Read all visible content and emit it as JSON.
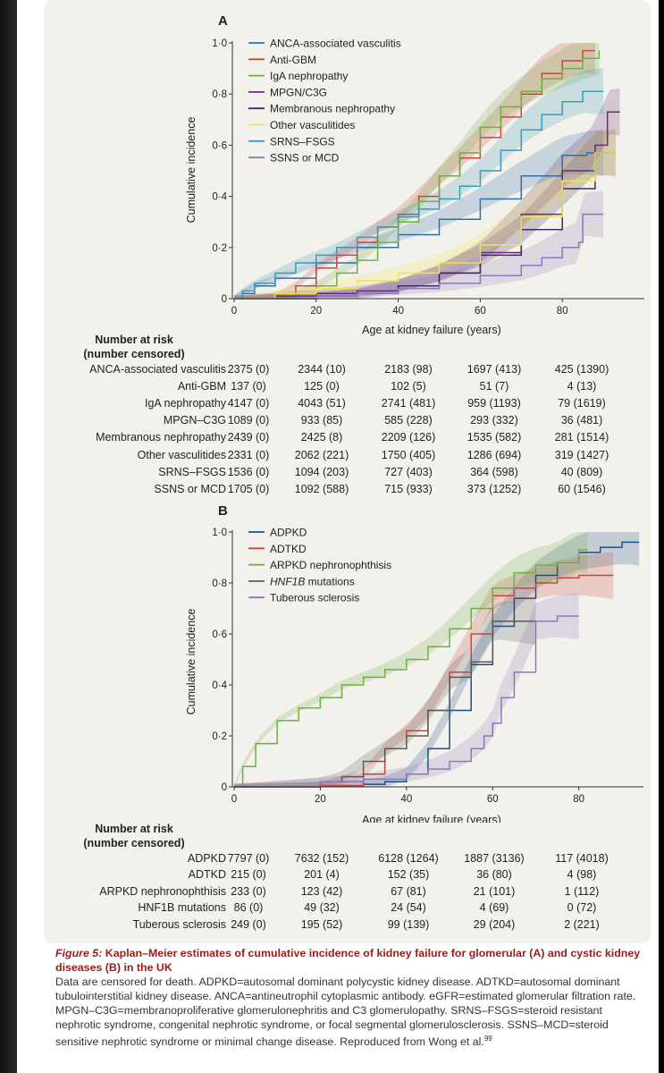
{
  "panels": [
    {
      "label": "A",
      "ylabel": "Cumulative incidence",
      "xlabel": "Age at kidney failure (years)",
      "yticks": [
        "0",
        "0·2",
        "0·4",
        "0·6",
        "0·8",
        "1·0"
      ],
      "xticks": [
        "0",
        "20",
        "40",
        "60",
        "80"
      ],
      "legend": [
        "ANCA-associated vasculitis",
        "Anti-GBM",
        "IgA nephropathy",
        "MPGN/C3G",
        "Membranous nephropathy",
        "Other vasculitides",
        "SRNS–FSGS",
        "SSNS or MCD"
      ],
      "risk_header": [
        "Number at risk",
        "(number censored)"
      ],
      "risk_rows": [
        {
          "label": "ANCA-associated vasculitis",
          "cells": [
            "2375 (0)",
            "2344 (10)",
            "2183 (98)",
            "1697 (413)",
            "425 (1390)"
          ]
        },
        {
          "label": "Anti-GBM",
          "cells": [
            "137 (0)",
            "125 (0)",
            "102 (5)",
            "51 (7)",
            "4 (13)"
          ]
        },
        {
          "label": "IgA nephropathy",
          "cells": [
            "4147 (0)",
            "4043 (51)",
            "2741 (481)",
            "959 (1193)",
            "79 (1619)"
          ]
        },
        {
          "label": "MPGN–C3G",
          "cells": [
            "1089 (0)",
            "933 (85)",
            "585 (228)",
            "293 (332)",
            "36 (481)"
          ]
        },
        {
          "label": "Membranous nephropathy",
          "cells": [
            "2439 (0)",
            "2425 (8)",
            "2209 (126)",
            "1535 (582)",
            "281 (1514)"
          ]
        },
        {
          "label": "Other vasculitides",
          "cells": [
            "2331 (0)",
            "2062 (221)",
            "1750 (405)",
            "1286 (694)",
            "319 (1427)"
          ]
        },
        {
          "label": "SRNS–FSGS",
          "cells": [
            "1536 (0)",
            "1094 (203)",
            "727 (403)",
            "364 (598)",
            "40 (809)"
          ]
        },
        {
          "label": "SSNS or MCD",
          "cells": [
            "1705 (0)",
            "1092 (588)",
            "715 (933)",
            "373 (1252)",
            "60 (1546)"
          ]
        }
      ]
    },
    {
      "label": "B",
      "ylabel": "Cumulative incidence",
      "xlabel": "Age at kidney failure (years)",
      "yticks": [
        "0",
        "0·2",
        "0·4",
        "0·6",
        "0·8",
        "1·0"
      ],
      "xticks": [
        "0",
        "20",
        "40",
        "60",
        "80"
      ],
      "legend": [
        "ADPKD",
        "ADTKD",
        "ARPKD nephronophthisis",
        "HNF1B mutations",
        "Tuberous sclerosis"
      ],
      "risk_header": [
        "Number at risk",
        "(number censored)"
      ],
      "risk_rows": [
        {
          "label": "ADPKD",
          "cells": [
            "7797 (0)",
            "7632 (152)",
            "6128 (1264)",
            "1887 (3136)",
            "117 (4018)"
          ]
        },
        {
          "label": "ADTKD",
          "cells": [
            "215 (0)",
            "201 (4)",
            "152 (35)",
            "36 (80)",
            "4 (98)"
          ]
        },
        {
          "label": "ARPKD nephronophthisis",
          "cells": [
            "233 (0)",
            "123 (42)",
            "67 (81)",
            "21 (101)",
            "1 (112)"
          ]
        },
        {
          "label": "HNF1B mutations",
          "cells": [
            "86 (0)",
            "49 (32)",
            "24 (54)",
            "4 (69)",
            "0 (72)"
          ]
        },
        {
          "label": "Tuberous sclerosis",
          "cells": [
            "249 (0)",
            "195 (52)",
            "99 (139)",
            "29 (204)",
            "2 (221)"
          ]
        }
      ]
    }
  ],
  "chart_data": [
    {
      "type": "line",
      "title": "A",
      "xlabel": "Age at kidney failure (years)",
      "ylabel": "Cumulative incidence",
      "xlim": [
        0,
        100
      ],
      "ylim": [
        0,
        1
      ],
      "series": [
        {
          "name": "ANCA-associated vasculitis",
          "color": "#2f6fa8",
          "x": [
            0,
            2,
            5,
            10,
            20,
            30,
            40,
            50,
            60,
            70,
            80,
            86,
            90
          ],
          "y": [
            0,
            0.02,
            0.05,
            0.08,
            0.14,
            0.2,
            0.25,
            0.31,
            0.39,
            0.48,
            0.56,
            0.57,
            0.57
          ]
        },
        {
          "name": "Anti-GBM",
          "color": "#c8473a",
          "x": [
            0,
            10,
            15,
            20,
            25,
            30,
            35,
            40,
            45,
            50,
            55,
            60,
            65,
            70,
            75,
            80,
            85,
            88
          ],
          "y": [
            0,
            0.01,
            0.05,
            0.12,
            0.17,
            0.22,
            0.28,
            0.33,
            0.4,
            0.48,
            0.55,
            0.63,
            0.71,
            0.8,
            0.88,
            0.93,
            0.97,
            0.97
          ]
        },
        {
          "name": "IgA nephropathy",
          "color": "#6fae45",
          "x": [
            0,
            10,
            15,
            20,
            25,
            30,
            35,
            40,
            45,
            50,
            55,
            60,
            65,
            70,
            75,
            80,
            85,
            89
          ],
          "y": [
            0,
            0.003,
            0.02,
            0.05,
            0.1,
            0.15,
            0.22,
            0.3,
            0.38,
            0.48,
            0.57,
            0.67,
            0.75,
            0.81,
            0.86,
            0.9,
            0.94,
            0.97
          ]
        },
        {
          "name": "MPGN/C3G",
          "color": "#6a2a78",
          "x": [
            0,
            10,
            20,
            30,
            40,
            50,
            60,
            70,
            80,
            88,
            91,
            94
          ],
          "y": [
            0,
            0.01,
            0.02,
            0.03,
            0.05,
            0.1,
            0.18,
            0.33,
            0.5,
            0.6,
            0.73,
            0.73
          ]
        },
        {
          "name": "Membranous nephropathy",
          "color": "#3e2a63",
          "x": [
            0,
            20,
            30,
            40,
            50,
            60,
            70,
            80,
            88,
            93
          ],
          "y": [
            0,
            0.01,
            0.02,
            0.05,
            0.1,
            0.17,
            0.27,
            0.43,
            0.57,
            0.57
          ]
        },
        {
          "name": "Other vasculitides",
          "color": "#f2e34a",
          "x": [
            0,
            10,
            20,
            30,
            40,
            50,
            60,
            70,
            80,
            88,
            93
          ],
          "y": [
            0,
            0.02,
            0.04,
            0.07,
            0.1,
            0.14,
            0.21,
            0.32,
            0.46,
            0.57,
            0.57
          ]
        },
        {
          "name": "SRNS–FSGS",
          "color": "#3d9ab6",
          "x": [
            0,
            2,
            5,
            10,
            15,
            20,
            25,
            30,
            35,
            40,
            45,
            50,
            55,
            60,
            65,
            70,
            75,
            80,
            85,
            90
          ],
          "y": [
            0,
            0.03,
            0.06,
            0.1,
            0.14,
            0.17,
            0.2,
            0.24,
            0.28,
            0.32,
            0.35,
            0.39,
            0.44,
            0.5,
            0.58,
            0.66,
            0.72,
            0.77,
            0.81,
            0.81
          ]
        },
        {
          "name": "SSNS or MCD",
          "color": "#8e77b8",
          "x": [
            0,
            20,
            30,
            40,
            50,
            60,
            70,
            75,
            80,
            84,
            85,
            90
          ],
          "y": [
            0,
            0.01,
            0.02,
            0.04,
            0.06,
            0.09,
            0.13,
            0.16,
            0.2,
            0.22,
            0.33,
            0.33
          ]
        }
      ]
    },
    {
      "type": "line",
      "title": "B",
      "xlabel": "Age at kidney failure (years)",
      "ylabel": "Cumulative incidence",
      "xlim": [
        0,
        95
      ],
      "ylim": [
        0,
        1
      ],
      "series": [
        {
          "name": "ADPKD",
          "color": "#1f4f8a",
          "x": [
            0,
            20,
            30,
            35,
            40,
            45,
            50,
            55,
            60,
            65,
            70,
            75,
            80,
            85,
            90,
            94
          ],
          "y": [
            0,
            0.005,
            0.01,
            0.02,
            0.05,
            0.15,
            0.3,
            0.48,
            0.63,
            0.74,
            0.83,
            0.88,
            0.92,
            0.94,
            0.96,
            0.96
          ]
        },
        {
          "name": "ADTKD",
          "color": "#c8473a",
          "x": [
            0,
            20,
            30,
            35,
            40,
            45,
            50,
            55,
            60,
            65,
            70,
            75,
            80,
            83,
            88
          ],
          "y": [
            0,
            0.005,
            0.05,
            0.15,
            0.22,
            0.3,
            0.45,
            0.6,
            0.75,
            0.78,
            0.8,
            0.82,
            0.83,
            0.83,
            0.83
          ]
        },
        {
          "name": "ARPKD nephronophthisis",
          "color": "#6fae45",
          "x": [
            0,
            2,
            5,
            10,
            15,
            20,
            25,
            30,
            35,
            40,
            45,
            50,
            55,
            60,
            65,
            70,
            75,
            80,
            82
          ],
          "y": [
            0,
            0.08,
            0.17,
            0.26,
            0.31,
            0.35,
            0.4,
            0.43,
            0.46,
            0.5,
            0.55,
            0.62,
            0.7,
            0.78,
            0.84,
            0.87,
            0.88,
            0.93,
            0.93
          ]
        },
        {
          "name": "HNF1B mutations",
          "color": "#5a5a5a",
          "x": [
            0,
            20,
            25,
            30,
            35,
            40,
            45,
            50,
            55,
            60,
            65,
            70
          ],
          "y": [
            0,
            0.02,
            0.04,
            0.1,
            0.15,
            0.2,
            0.3,
            0.43,
            0.49,
            0.65,
            0.65,
            0.65
          ]
        },
        {
          "name": "Tuberous sclerosis",
          "color": "#8e77b8",
          "x": [
            0,
            20,
            30,
            40,
            45,
            50,
            55,
            58,
            60,
            62,
            65,
            70,
            75,
            80
          ],
          "y": [
            0,
            0.02,
            0.03,
            0.05,
            0.07,
            0.1,
            0.15,
            0.2,
            0.25,
            0.35,
            0.45,
            0.65,
            0.67,
            0.67
          ]
        }
      ]
    }
  ],
  "caption": {
    "figure_label": "Figure 5:",
    "title": "Kaplan–Meier estimates of cumulative incidence of kidney failure for glomerular (A) and cystic kidney diseases (B) in the UK",
    "body": "Data are censored for death. ADPKD=autosomal dominant polycystic kidney disease. ADTKD=autosomal dominant tubulointerstitial kidney disease. ANCA=antineutrophil cytoplasmic antibody. eGFR=estimated glomerular filtration rate. MPGN–C3G=membranoproliferative glomerulonephritis and C3 glomerulopathy. SRNS–FSGS=steroid resistant nephrotic syndrome, congenital nephrotic syndrome, or focal segmental glomerulosclerosis. SSNS–MCD=steroid sensitive nephrotic syndrome or minimal change disease. Reproduced from Wong et al.",
    "reference": "99"
  }
}
